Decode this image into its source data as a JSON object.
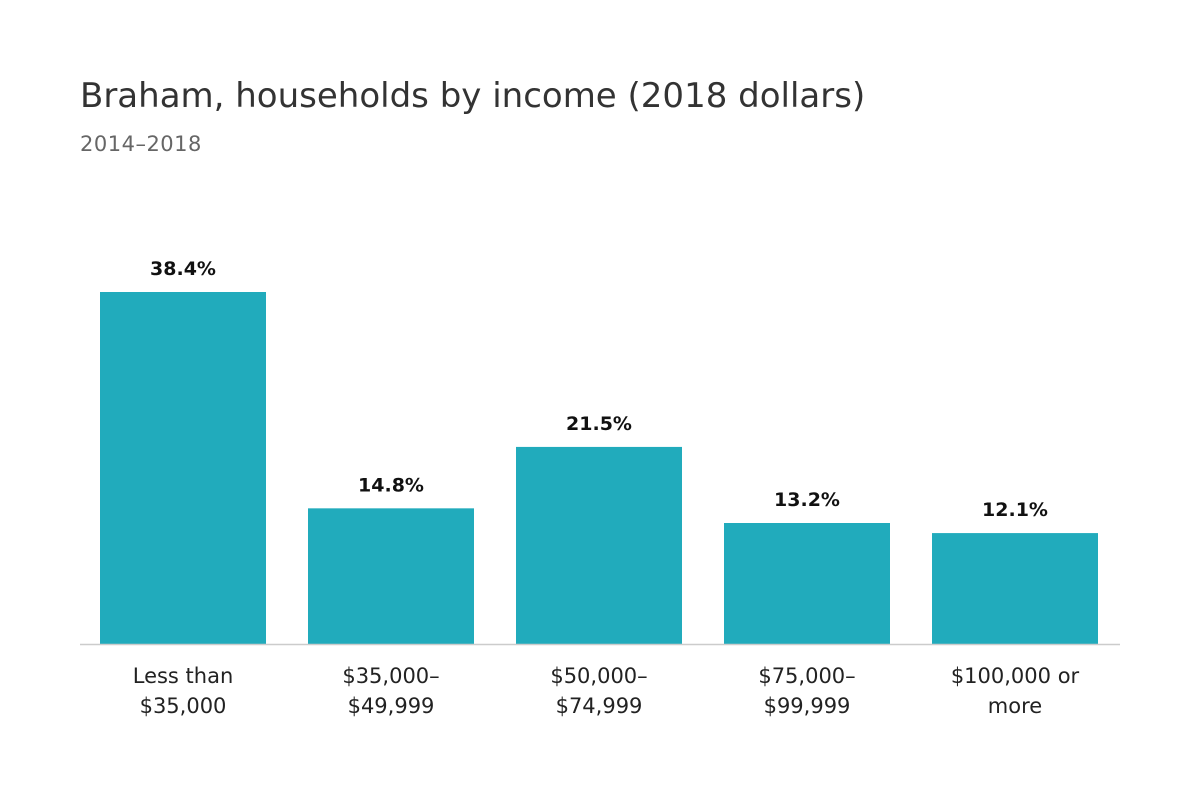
{
  "header": {
    "title": "Braham, households by income (2018 dollars)",
    "subtitle": "2014–2018"
  },
  "colors": {
    "bar": "#21abbc",
    "axis": "#cccccc",
    "title": "#333333",
    "subtitle": "#666666"
  },
  "chart_data": {
    "type": "bar",
    "title": "Braham, households by income (2018 dollars)",
    "subtitle": "2014–2018",
    "categories": [
      [
        "Less than",
        "$35,000"
      ],
      [
        "$35,000–",
        "$49,999"
      ],
      [
        "$50,000–",
        "$74,999"
      ],
      [
        "$75,000–",
        "$99,999"
      ],
      [
        "$100,000 or",
        "more"
      ]
    ],
    "values": [
      38.4,
      14.8,
      21.5,
      13.2,
      12.1
    ],
    "value_labels": [
      "38.4%",
      "14.8%",
      "21.5%",
      "13.2%",
      "12.1%"
    ],
    "xlabel": "",
    "ylabel": "",
    "ylim": [
      0,
      38.4
    ],
    "grid": false,
    "legend": "none"
  }
}
